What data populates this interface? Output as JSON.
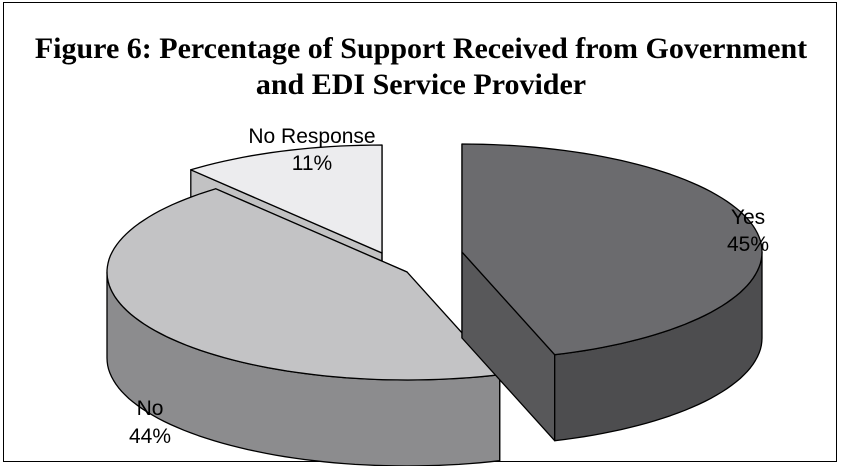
{
  "chart_data": {
    "type": "pie",
    "style": "3d-exploded",
    "title": "Figure 6: Percentage of Support Received from Government and EDI Service Provider",
    "title_lines": [
      "Figure 6: Percentage of Support Received from Government",
      "and EDI Service Provider"
    ],
    "unit": "%",
    "slices": [
      {
        "name": "Yes",
        "value": 45,
        "label": "45%",
        "color": "#6b6b6e"
      },
      {
        "name": "No",
        "value": 44,
        "label": "44%",
        "color": "#c3c3c5"
      },
      {
        "name": "No Response",
        "value": 11,
        "label": "11%",
        "color": "#ececee"
      }
    ]
  }
}
